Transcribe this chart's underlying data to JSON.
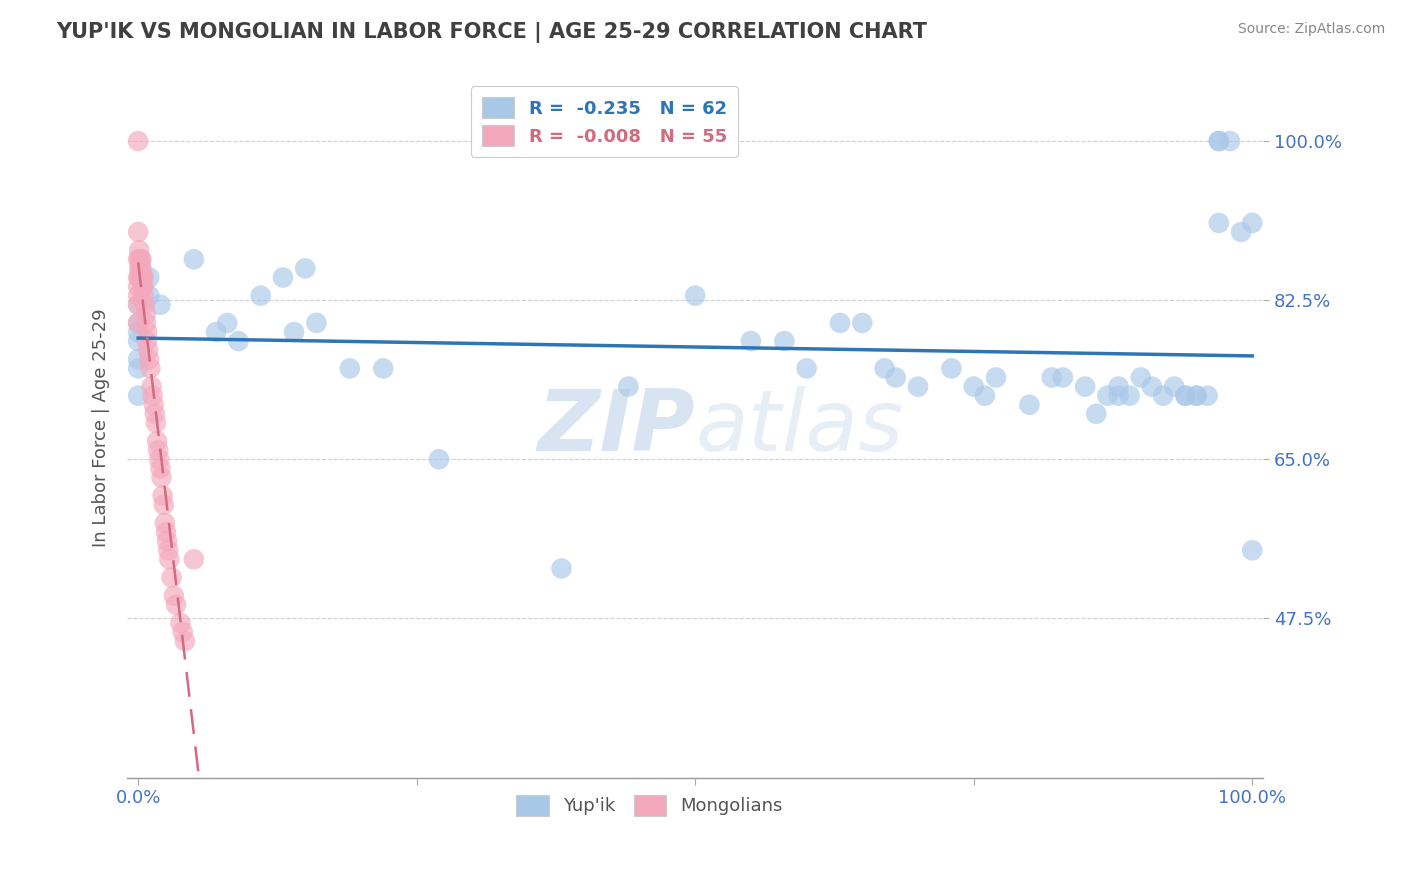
{
  "title": "YUP'IK VS MONGOLIAN IN LABOR FORCE | AGE 25-29 CORRELATION CHART",
  "source_text": "Source: ZipAtlas.com",
  "ylabel": "In Labor Force | Age 25-29",
  "watermark_zip": "ZIP",
  "watermark_atlas": "atlas",
  "legend_blue_label": "R =  -0.235   N = 62",
  "legend_pink_label": "R =  -0.008   N = 55",
  "legend_label_blue": "Yup'ik",
  "legend_label_pink": "Mongolians",
  "xlim": [
    0.0,
    1.0
  ],
  "ylim": [
    0.3,
    1.07
  ],
  "yticks": [
    0.475,
    0.65,
    0.825,
    1.0
  ],
  "ytick_labels": [
    "47.5%",
    "65.0%",
    "82.5%",
    "100.0%"
  ],
  "xtick_labels": [
    "0.0%",
    "100.0%"
  ],
  "blue_color": "#a8c8e8",
  "pink_color": "#f4a8bc",
  "blue_line_color": "#2e75b6",
  "pink_line_color": "#d46a80",
  "title_color": "#404040",
  "axis_color": "#4472c4",
  "tick_color": "#4472c4",
  "background_color": "#ffffff",
  "blue_x": [
    0.0,
    0.0,
    0.0,
    0.0,
    0.0,
    0.0,
    0.0,
    0.01,
    0.01,
    0.02,
    0.05,
    0.07,
    0.08,
    0.09,
    0.11,
    0.13,
    0.14,
    0.15,
    0.16,
    0.19,
    0.22,
    0.27,
    0.38,
    0.44,
    0.5,
    0.55,
    0.58,
    0.6,
    0.63,
    0.65,
    0.67,
    0.68,
    0.7,
    0.73,
    0.75,
    0.76,
    0.77,
    0.8,
    0.82,
    0.83,
    0.85,
    0.86,
    0.87,
    0.88,
    0.88,
    0.89,
    0.9,
    0.91,
    0.92,
    0.93,
    0.94,
    0.94,
    0.95,
    0.95,
    0.96,
    0.97,
    0.97,
    0.97,
    0.98,
    0.99,
    1.0,
    1.0
  ],
  "blue_y": [
    0.82,
    0.8,
    0.79,
    0.78,
    0.76,
    0.75,
    0.72,
    0.85,
    0.83,
    0.82,
    0.87,
    0.79,
    0.8,
    0.78,
    0.83,
    0.85,
    0.79,
    0.86,
    0.8,
    0.75,
    0.75,
    0.65,
    0.53,
    0.73,
    0.83,
    0.78,
    0.78,
    0.75,
    0.8,
    0.8,
    0.75,
    0.74,
    0.73,
    0.75,
    0.73,
    0.72,
    0.74,
    0.71,
    0.74,
    0.74,
    0.73,
    0.7,
    0.72,
    0.73,
    0.72,
    0.72,
    0.74,
    0.73,
    0.72,
    0.73,
    0.72,
    0.72,
    0.72,
    0.72,
    0.72,
    0.91,
    1.0,
    1.0,
    1.0,
    0.9,
    0.91,
    0.55
  ],
  "pink_x": [
    0.0,
    0.0,
    0.0,
    0.0,
    0.0,
    0.0,
    0.0,
    0.0,
    0.001,
    0.001,
    0.001,
    0.001,
    0.002,
    0.002,
    0.002,
    0.003,
    0.003,
    0.003,
    0.004,
    0.004,
    0.005,
    0.005,
    0.005,
    0.006,
    0.007,
    0.007,
    0.008,
    0.008,
    0.009,
    0.01,
    0.011,
    0.012,
    0.013,
    0.014,
    0.015,
    0.016,
    0.017,
    0.018,
    0.019,
    0.02,
    0.021,
    0.022,
    0.023,
    0.024,
    0.025,
    0.026,
    0.027,
    0.028,
    0.03,
    0.032,
    0.034,
    0.038,
    0.04,
    0.042,
    0.05
  ],
  "pink_y": [
    1.0,
    0.9,
    0.87,
    0.85,
    0.84,
    0.83,
    0.82,
    0.8,
    0.88,
    0.87,
    0.86,
    0.85,
    0.87,
    0.86,
    0.85,
    0.87,
    0.86,
    0.85,
    0.85,
    0.84,
    0.85,
    0.84,
    0.83,
    0.82,
    0.81,
    0.8,
    0.79,
    0.78,
    0.77,
    0.76,
    0.75,
    0.73,
    0.72,
    0.71,
    0.7,
    0.69,
    0.67,
    0.66,
    0.65,
    0.64,
    0.63,
    0.61,
    0.6,
    0.58,
    0.57,
    0.56,
    0.55,
    0.54,
    0.52,
    0.5,
    0.49,
    0.47,
    0.46,
    0.45,
    0.54
  ]
}
